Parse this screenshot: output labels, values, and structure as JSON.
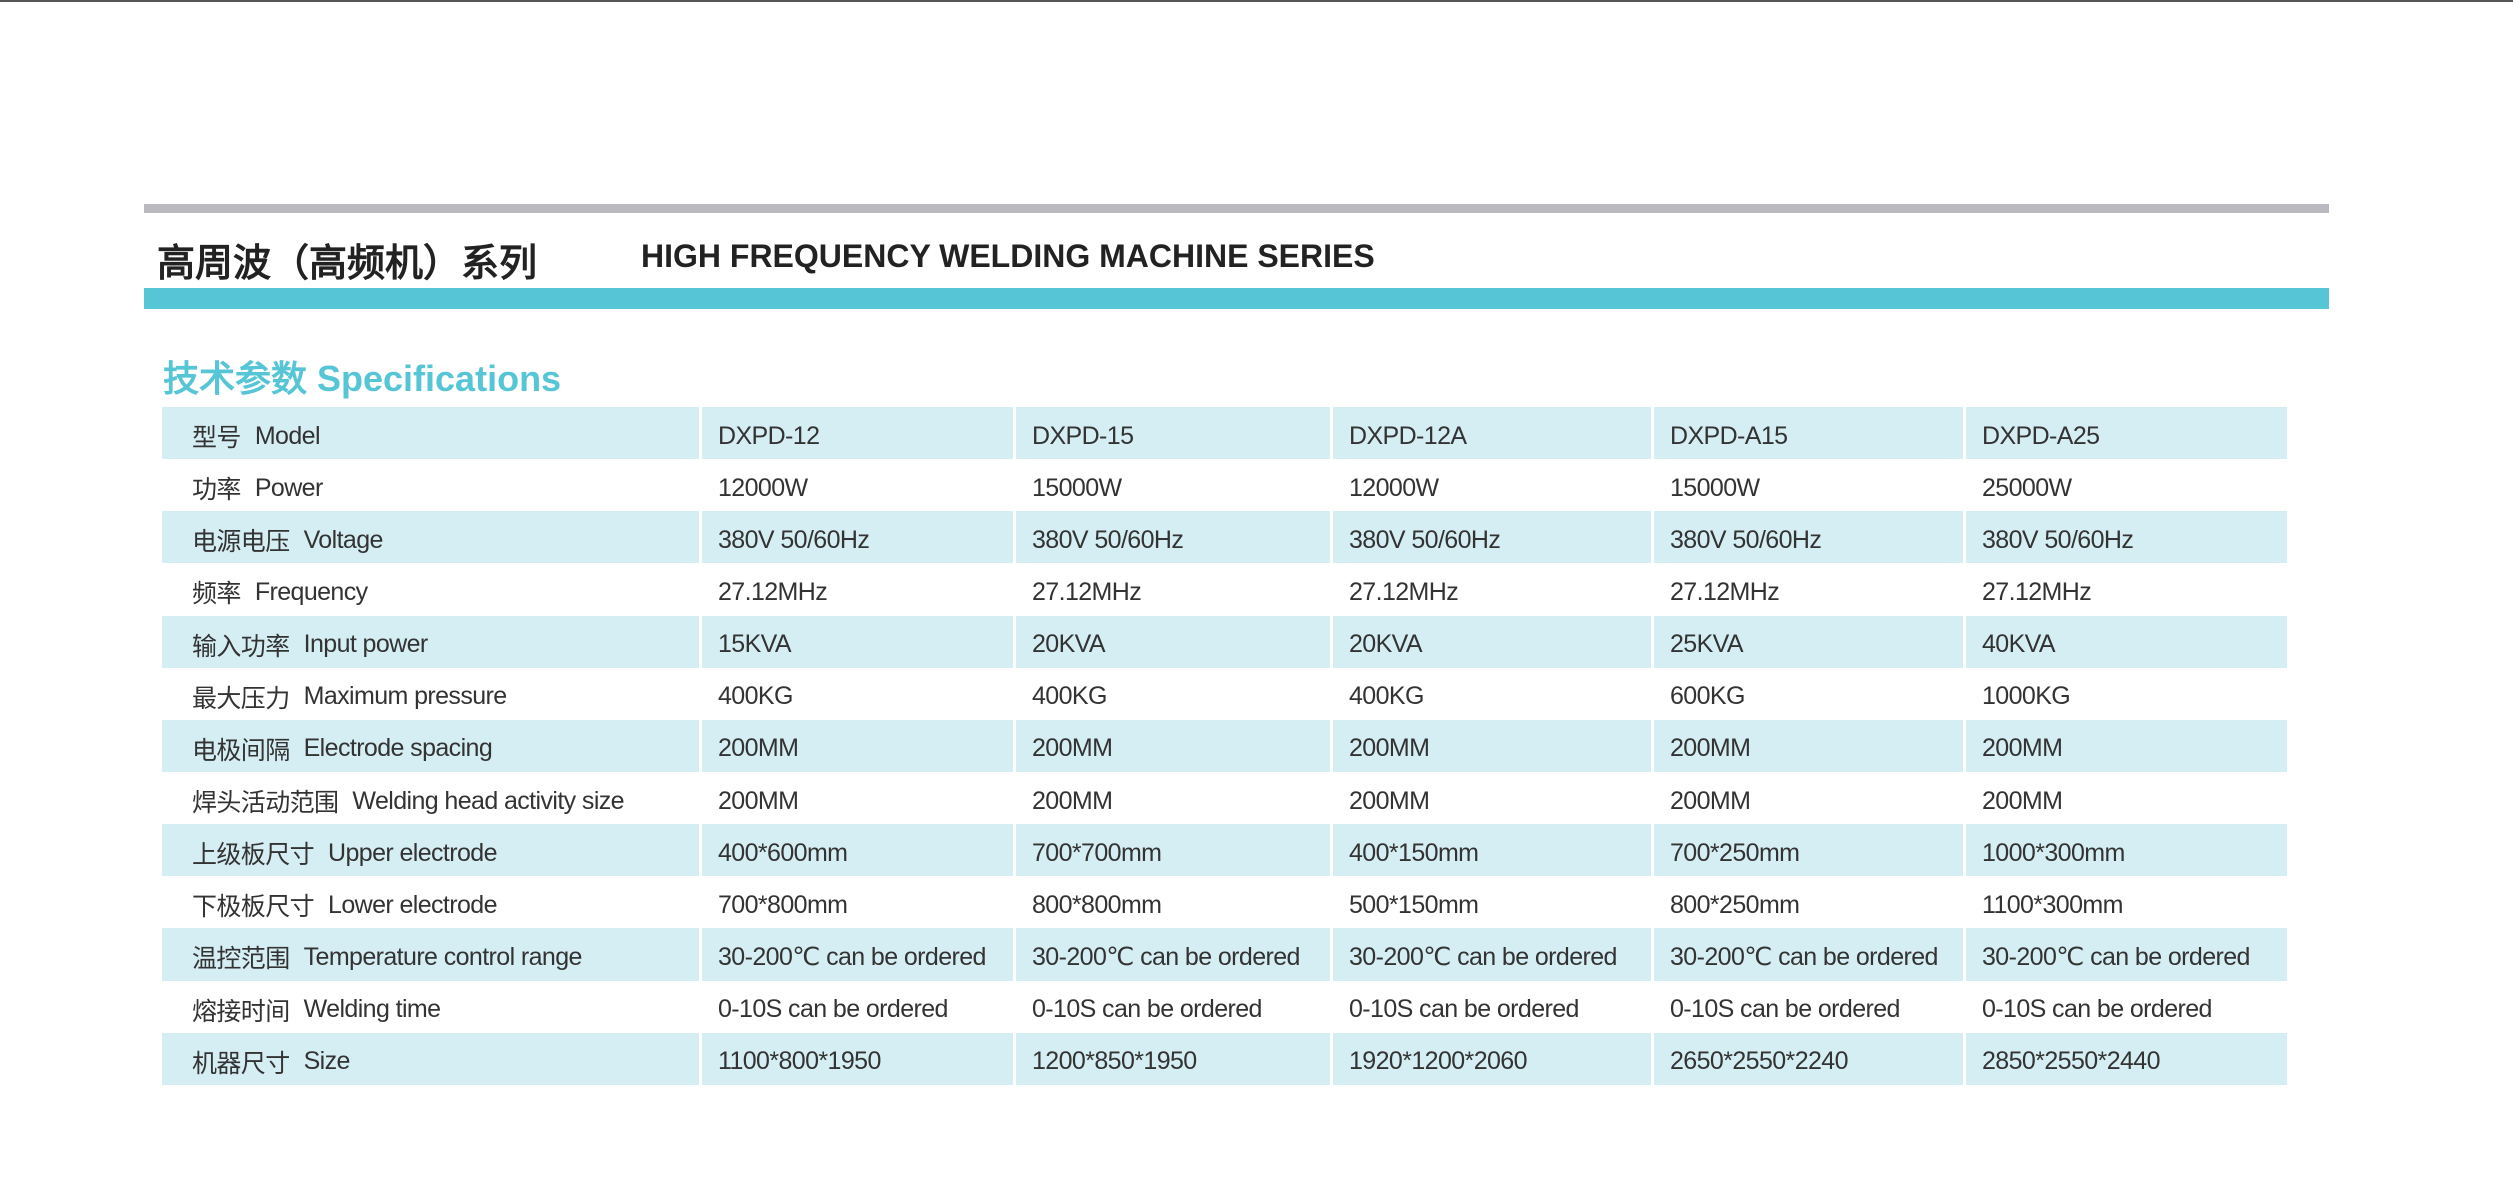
{
  "header": {
    "title_cn": "高周波（高频机）系列",
    "title_en": "HIGH FREQUENCY WELDING MACHINE SERIES"
  },
  "section": {
    "title": "技术参数 Specifications"
  },
  "table": {
    "rows": [
      {
        "cn": "型号",
        "en": "Model",
        "values": [
          "DXPD-12",
          "DXPD-15",
          "DXPD-12A",
          "DXPD-A15",
          "DXPD-A25"
        ]
      },
      {
        "cn": "功率",
        "en": "Power",
        "values": [
          "12000W",
          "15000W",
          "12000W",
          "15000W",
          "25000W"
        ]
      },
      {
        "cn": "电源电压",
        "en": "Voltage",
        "values": [
          "380V 50/60Hz",
          "380V 50/60Hz",
          "380V 50/60Hz",
          "380V 50/60Hz",
          "380V 50/60Hz"
        ]
      },
      {
        "cn": "频率",
        "en": "Frequency",
        "values": [
          "27.12MHz",
          "27.12MHz",
          "27.12MHz",
          "27.12MHz",
          "27.12MHz"
        ]
      },
      {
        "cn": "输入功率",
        "en": "Input power",
        "values": [
          "15KVA",
          "20KVA",
          "20KVA",
          "25KVA",
          "40KVA"
        ]
      },
      {
        "cn": "最大压力",
        "en": "Maximum pressure",
        "values": [
          "400KG",
          "400KG",
          "400KG",
          "600KG",
          "1000KG"
        ]
      },
      {
        "cn": "电极间隔",
        "en": "Electrode spacing",
        "values": [
          "200MM",
          "200MM",
          "200MM",
          "200MM",
          "200MM"
        ]
      },
      {
        "cn": "焊头活动范围",
        "en": "Welding head activity size",
        "values": [
          "200MM",
          "200MM",
          "200MM",
          "200MM",
          "200MM"
        ]
      },
      {
        "cn": "上级板尺寸",
        "en": "Upper electrode",
        "values": [
          "400*600mm",
          "700*700mm",
          "400*150mm",
          "700*250mm",
          "1000*300mm"
        ]
      },
      {
        "cn": "下极板尺寸",
        "en": "Lower electrode",
        "values": [
          "700*800mm",
          "800*800mm",
          "500*150mm",
          "800*250mm",
          "1100*300mm"
        ]
      },
      {
        "cn": "温控范围",
        "en": "Temperature control range",
        "values": [
          "30-200℃ can be ordered",
          "30-200℃ can be ordered",
          "30-200℃ can be ordered",
          "30-200℃ can be ordered",
          "30-200℃ can be ordered"
        ]
      },
      {
        "cn": "熔接时间",
        "en": "Welding time",
        "values": [
          "0-10S can be ordered",
          "0-10S can be ordered",
          "0-10S can be ordered",
          "0-10S can be ordered",
          "0-10S can be ordered"
        ]
      },
      {
        "cn": "机器尺寸",
        "en": "Size",
        "values": [
          "1100*800*1950",
          "1200*850*1950",
          "1920*1200*2060",
          "2650*2550*2240",
          "2850*2550*2440"
        ]
      }
    ]
  }
}
